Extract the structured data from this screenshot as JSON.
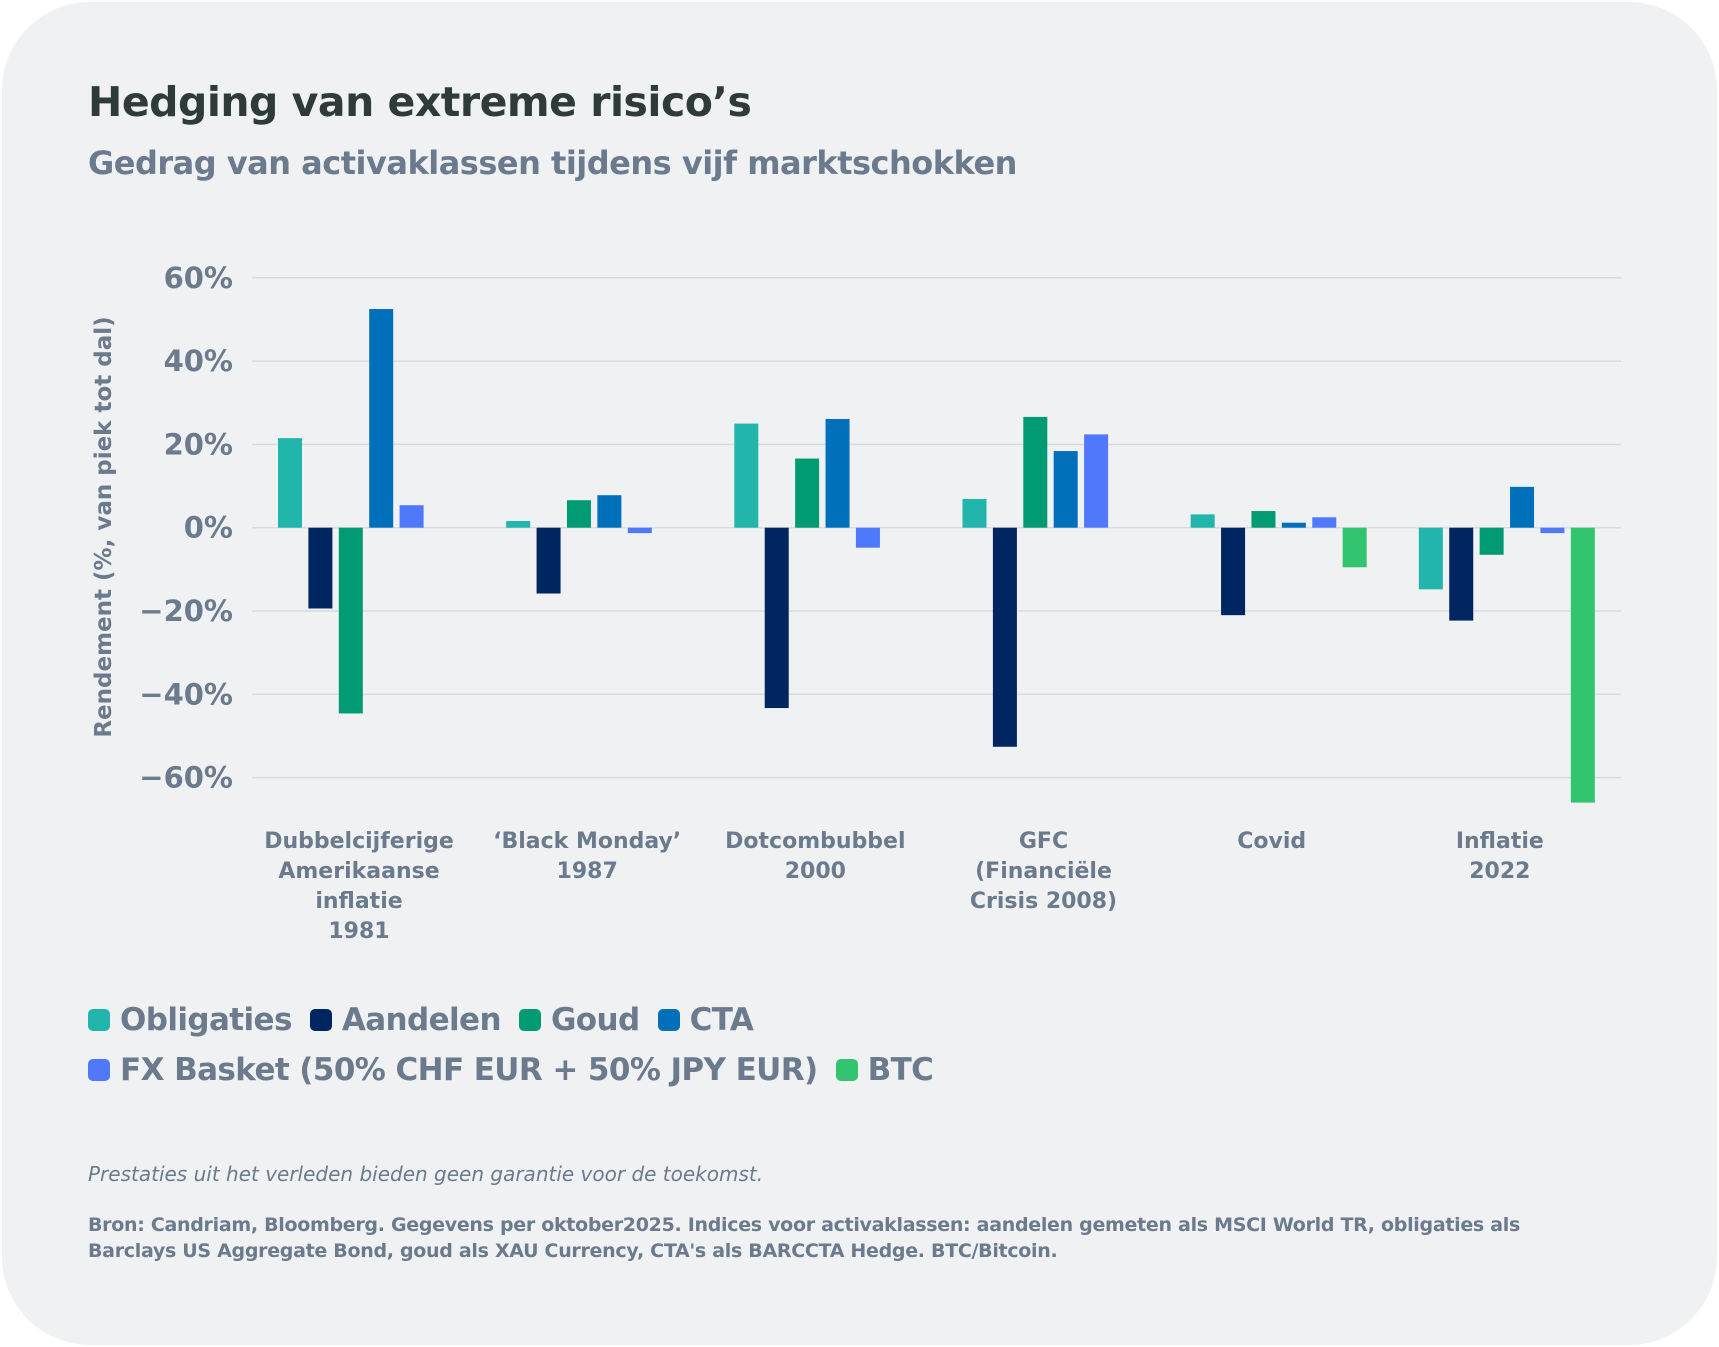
{
  "header": {
    "title": "Hedging van extreme risico’s",
    "subtitle": "Gedrag van activaklassen tijdens vijf marktschokken"
  },
  "chart_data": {
    "type": "bar",
    "title": "Hedging van extreme risico’s",
    "subtitle": "Gedrag van activaklassen tijdens vijf marktschokken",
    "xlabel": "",
    "ylabel": "Rendement (%, van piek tot dal)",
    "ylim": [
      -60,
      60
    ],
    "yticks": [
      60,
      40,
      20,
      0,
      -20,
      -40,
      -60
    ],
    "ytick_labels": [
      "60%",
      "40%",
      "20%",
      "0%",
      "−20%",
      "−40%",
      "−60%"
    ],
    "grid": true,
    "legend_position": "bottom-left",
    "categories": [
      [
        "Dubbelcijferige",
        "Amerikaanse",
        "inflatie",
        "1981"
      ],
      [
        "‘Black Monday’",
        "1987"
      ],
      [
        "Dotcombubbel",
        "2000"
      ],
      [
        "GFC",
        "(Financiële",
        "Crisis 2008)"
      ],
      [
        "Covid"
      ],
      [
        "Inflatie",
        "2022"
      ]
    ],
    "series": [
      {
        "name": "Obligaties",
        "color": "#22b5ac",
        "values": [
          21.5,
          1.6,
          25.0,
          6.9,
          3.2,
          -14.8
        ]
      },
      {
        "name": "Aandelen",
        "color": "#002661",
        "values": [
          -19.4,
          -15.8,
          -43.3,
          -52.6,
          -21.0,
          -22.3
        ]
      },
      {
        "name": "Goud",
        "color": "#009b72",
        "values": [
          -44.6,
          6.6,
          16.6,
          26.6,
          4.0,
          -6.5
        ]
      },
      {
        "name": "CTA",
        "color": "#0070bb",
        "values": [
          52.5,
          7.8,
          26.1,
          18.4,
          1.2,
          9.8
        ]
      },
      {
        "name": "FX Basket (50% CHF EUR + 50% JPY EUR)",
        "color": "#4f78fb",
        "values": [
          5.4,
          -1.3,
          -4.8,
          22.4,
          2.5,
          -1.3
        ]
      },
      {
        "name": "BTC",
        "color": "#33c46f",
        "values": [
          null,
          null,
          null,
          null,
          -9.5,
          -66.0
        ]
      }
    ]
  },
  "legend": {
    "rows": [
      [
        0,
        1,
        2,
        3
      ],
      [
        4,
        5
      ]
    ]
  },
  "footer": {
    "disclaimer": "Prestaties uit het verleden bieden geen garantie voor de toekomst.",
    "source": "Bron: Candriam, Bloomberg. Gegevens per oktober2025. Indices voor activaklassen: aandelen gemeten als MSCI World TR, obligaties als Barclays US Aggregate Bond, goud als XAU Currency, CTA's als BARCCTA Hedge. BTC/Bitcoin."
  }
}
